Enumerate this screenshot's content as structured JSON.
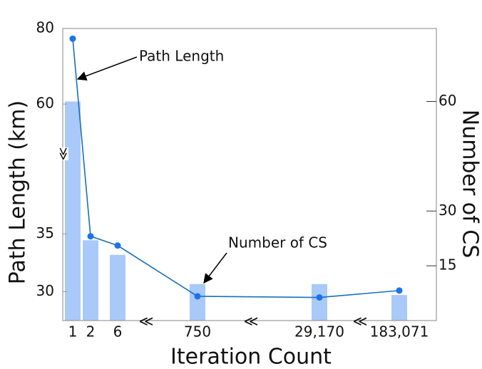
{
  "chart_data": {
    "type": "combo",
    "x_label": "Iteration Count",
    "y_label": "Path Length (km)",
    "y2_label": "Number of CS",
    "categories": [
      "1",
      "2",
      "6",
      "750",
      "29,170",
      "183,071"
    ],
    "ylim": [
      27.5,
      80
    ],
    "ybreak": [
      42,
      47
    ],
    "yticks": [
      30,
      35,
      60,
      80
    ],
    "y2lim": [
      0,
      80
    ],
    "y2ticks": [
      15,
      30,
      60
    ],
    "series": [
      {
        "name": "Path Length",
        "type": "line",
        "color": "#1a6fb8",
        "marker_color": "#1a73e8",
        "values": [
          77.3,
          34.8,
          34.0,
          29.6,
          29.5,
          30.1
        ]
      },
      {
        "name": "Number of CS",
        "type": "bar",
        "axis": "y2",
        "color": "#a9c9f9",
        "values": [
          60,
          22,
          18,
          10,
          10,
          7
        ]
      }
    ]
  }
}
